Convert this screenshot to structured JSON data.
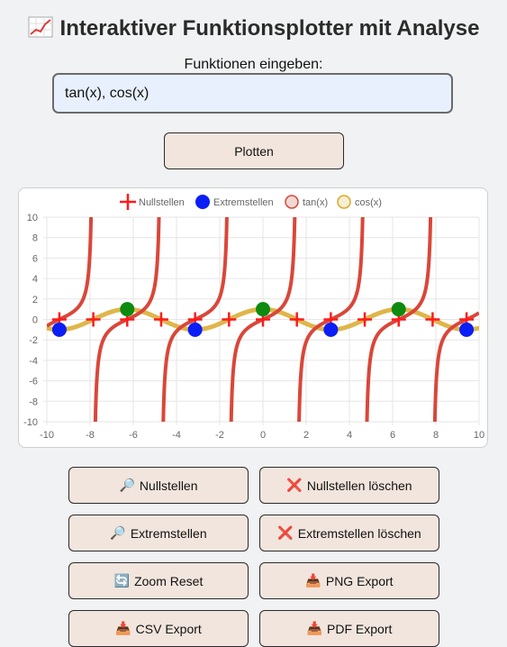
{
  "header": {
    "title": "Interaktiver Funktionsplotter mit Analyse",
    "icon": "chart-increasing-icon"
  },
  "input": {
    "label": "Funktionen eingeben:",
    "value": "tan(x), cos(x)"
  },
  "plot_button": {
    "label": "Plotten"
  },
  "buttons": [
    {
      "icon": "🔎",
      "label": "Nullstellen"
    },
    {
      "icon": "❌",
      "label": "Nullstellen löschen"
    },
    {
      "icon": "🔎",
      "label": "Extremstellen"
    },
    {
      "icon": "❌",
      "label": "Extremstellen löschen"
    },
    {
      "icon": "🔄",
      "label": "Zoom Reset"
    },
    {
      "icon": "📥",
      "label": "PNG Export"
    },
    {
      "icon": "📥",
      "label": "CSV Export"
    },
    {
      "icon": "📥",
      "label": "PDF Export"
    }
  ],
  "colors": {
    "button_bg": "#f2e5dd",
    "input_bg": "#e8f0fe",
    "tan": "#d9473a",
    "cos": "#d9a92a",
    "zeros": "#ff1a1a",
    "minima": "#0a1ff5",
    "maxima": "#0e8a0e"
  },
  "chart_data": {
    "type": "line",
    "legend": [
      "Nullstellen",
      "Extremstellen",
      "tan(x)",
      "cos(x)"
    ],
    "xlim": [
      -10,
      10
    ],
    "ylim": [
      -10,
      10
    ],
    "xticks": [
      -10,
      -8,
      -6,
      -4,
      -2,
      0,
      2,
      4,
      6,
      8,
      10
    ],
    "yticks": [
      10,
      8,
      6,
      4,
      2,
      0,
      -2,
      -4,
      -6,
      -8,
      -10
    ],
    "grid": true,
    "series": [
      {
        "name": "tan(x)",
        "function": "tan(x)"
      },
      {
        "name": "cos(x)",
        "function": "cos(x)"
      }
    ],
    "zeros": [
      -9.42,
      -7.85,
      -6.28,
      -4.71,
      -3.14,
      -1.57,
      0,
      1.57,
      3.14,
      4.71,
      6.28,
      7.85,
      9.42
    ],
    "minima": [
      [
        -9.42,
        -1
      ],
      [
        -3.14,
        -1
      ],
      [
        3.14,
        -1
      ],
      [
        9.42,
        -1
      ]
    ],
    "maxima": [
      [
        -6.28,
        1
      ],
      [
        0,
        1
      ],
      [
        6.28,
        1
      ]
    ]
  }
}
